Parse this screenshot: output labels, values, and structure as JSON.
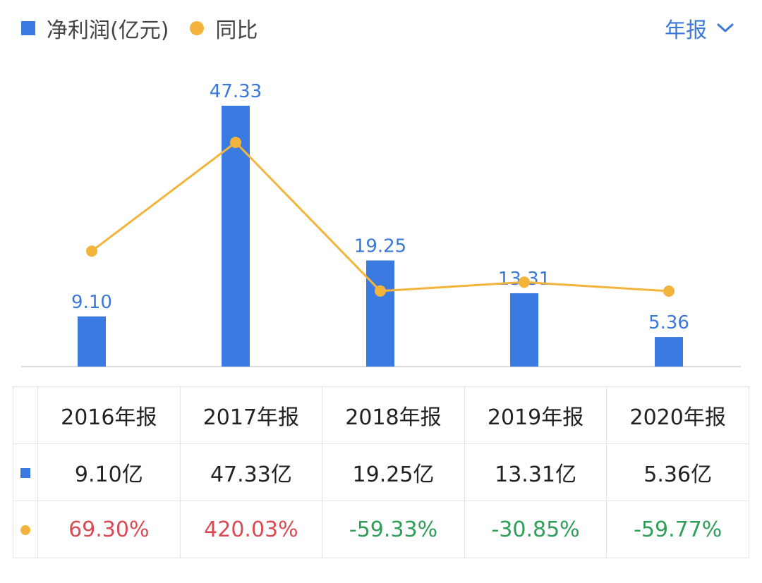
{
  "legend": {
    "bar_label": "净利润(亿元)",
    "line_label": "同比"
  },
  "period_selector": {
    "label": "年报"
  },
  "table": {
    "headers": [
      "2016年报",
      "2017年报",
      "2018年报",
      "2019年报",
      "2020年报"
    ],
    "profit_row": [
      "9.10亿",
      "47.33亿",
      "19.25亿",
      "13.31亿",
      "5.36亿"
    ],
    "yoy_row": [
      "69.30%",
      "420.03%",
      "-59.33%",
      "-30.85%",
      "-59.77%"
    ]
  },
  "colors": {
    "bar": "#3b7ae0",
    "line": "#f3b43c",
    "positive": "#d94a55",
    "negative": "#2f9e5a",
    "accent": "#3b78d8"
  },
  "chart_data": {
    "type": "bar",
    "categories": [
      "2016年报",
      "2017年报",
      "2018年报",
      "2019年报",
      "2020年报"
    ],
    "series": [
      {
        "name": "净利润(亿元)",
        "kind": "bar",
        "values": [
          9.1,
          47.33,
          19.25,
          13.31,
          5.36
        ],
        "labels": [
          "9.10",
          "47.33",
          "19.25",
          "13.31",
          "5.36"
        ]
      },
      {
        "name": "同比",
        "kind": "line",
        "values": [
          69.3,
          420.03,
          -59.33,
          -30.85,
          -59.77
        ]
      }
    ],
    "bar_ylim": [
      0,
      47.33
    ],
    "line_ylim": [
      -59.77,
      420.03
    ]
  }
}
